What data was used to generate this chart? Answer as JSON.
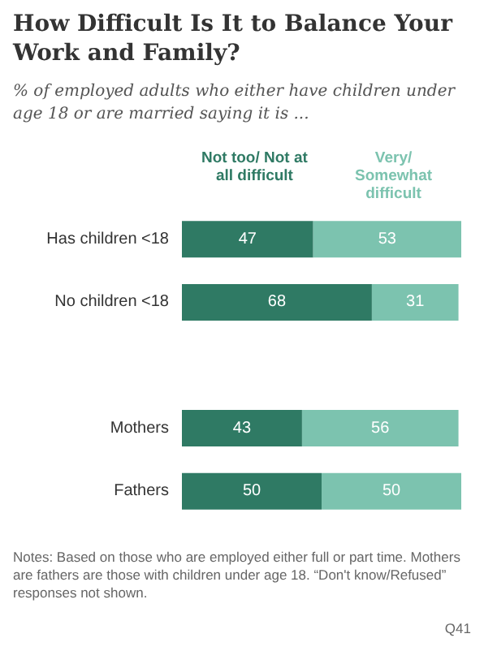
{
  "chart_data": {
    "type": "bar",
    "orientation": "horizontal",
    "stacked": true,
    "title": "How Difficult Is It to Balance Your Work and Family?",
    "subtitle": "% of employed adults who either have children under age 18 or are married saying it is ...",
    "categories": [
      "Has children <18",
      "No children <18",
      null,
      "Mothers",
      "Fathers"
    ],
    "series": [
      {
        "name": "Not too/ Not at all difficult",
        "color": "#2f7a64",
        "values": [
          47,
          68,
          null,
          43,
          50
        ]
      },
      {
        "name": "Very/ Somewhat difficult",
        "color": "#7cc3af",
        "values": [
          53,
          31,
          null,
          56,
          50
        ]
      }
    ],
    "data_labels": true,
    "legend": "top",
    "annotations": [
      "Notes: Based on those who are employed either full or part time. Mothers are fathers are those with children under age 18. “Don't know/Refused” responses not shown.",
      "Q41"
    ]
  }
}
